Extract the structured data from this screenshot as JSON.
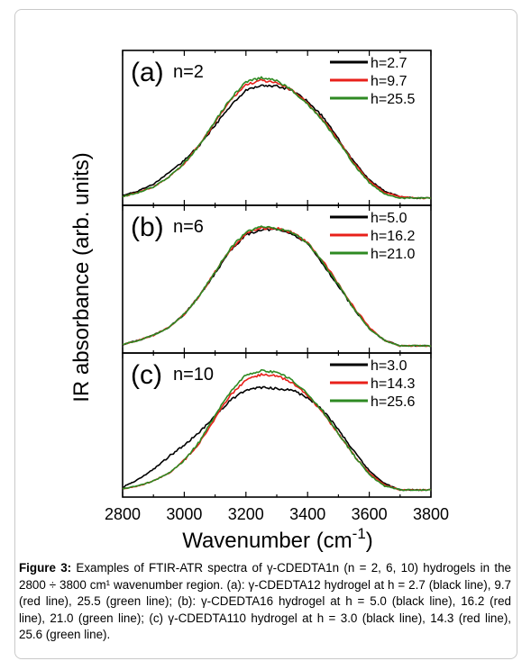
{
  "chart_data": {
    "type": "line",
    "ylabel": "IR absorbance (arb. units)",
    "xlabel_text": "Wavenumber (cm",
    "xlabel_sup": "-1",
    "xlabel_close": ")",
    "xlim": [
      2800,
      3800
    ],
    "x_ticks": [
      "2800",
      "3000",
      "3200",
      "3400",
      "3600",
      "3800"
    ],
    "grid": false,
    "legend_position": "top-right",
    "panels": [
      {
        "panel_label": "(a)",
        "n_label": "n=2",
        "series": [
          {
            "name": "h=2.7",
            "color": "#000000",
            "x": [
              2800,
              2850,
              2900,
              2950,
              3000,
              3050,
              3100,
              3150,
              3200,
              3250,
              3300,
              3350,
              3400,
              3450,
              3500,
              3550,
              3600,
              3650,
              3700,
              3750,
              3800
            ],
            "y": [
              0.02,
              0.05,
              0.1,
              0.18,
              0.27,
              0.38,
              0.52,
              0.66,
              0.77,
              0.8,
              0.8,
              0.77,
              0.69,
              0.58,
              0.42,
              0.26,
              0.13,
              0.05,
              0.01,
              0.0,
              0.0
            ]
          },
          {
            "name": "h=9.7",
            "color": "#e8201a",
            "x": [
              2800,
              2850,
              2900,
              2950,
              3000,
              3050,
              3100,
              3150,
              3200,
              3250,
              3300,
              3350,
              3400,
              3450,
              3500,
              3550,
              3600,
              3650,
              3700,
              3750,
              3800
            ],
            "y": [
              0.01,
              0.04,
              0.08,
              0.15,
              0.25,
              0.38,
              0.54,
              0.7,
              0.81,
              0.84,
              0.82,
              0.77,
              0.68,
              0.56,
              0.41,
              0.25,
              0.12,
              0.04,
              0.01,
              0.0,
              0.0
            ]
          },
          {
            "name": "h=25.5",
            "color": "#2e8a22",
            "x": [
              2800,
              2850,
              2900,
              2950,
              3000,
              3050,
              3100,
              3150,
              3200,
              3250,
              3300,
              3350,
              3400,
              3450,
              3500,
              3550,
              3600,
              3650,
              3700,
              3750,
              3800
            ],
            "y": [
              0.01,
              0.04,
              0.08,
              0.15,
              0.25,
              0.38,
              0.55,
              0.71,
              0.83,
              0.86,
              0.84,
              0.77,
              0.67,
              0.55,
              0.4,
              0.24,
              0.11,
              0.03,
              0.0,
              0.0,
              0.0
            ]
          }
        ]
      },
      {
        "panel_label": "(b)",
        "n_label": "n=6",
        "series": [
          {
            "name": "h=5.0",
            "color": "#000000",
            "x": [
              2800,
              2850,
              2900,
              2950,
              3000,
              3050,
              3100,
              3150,
              3200,
              3250,
              3300,
              3350,
              3400,
              3450,
              3500,
              3550,
              3600,
              3650,
              3700,
              3750,
              3800
            ],
            "y": [
              0.01,
              0.04,
              0.08,
              0.14,
              0.24,
              0.38,
              0.55,
              0.72,
              0.84,
              0.88,
              0.88,
              0.85,
              0.77,
              0.62,
              0.45,
              0.28,
              0.13,
              0.04,
              0.0,
              0.0,
              0.0
            ]
          },
          {
            "name": "h=16.2",
            "color": "#e8201a",
            "x": [
              2800,
              2850,
              2900,
              2950,
              3000,
              3050,
              3100,
              3150,
              3200,
              3250,
              3300,
              3350,
              3400,
              3450,
              3500,
              3550,
              3600,
              3650,
              3700,
              3750,
              3800
            ],
            "y": [
              0.01,
              0.04,
              0.08,
              0.14,
              0.24,
              0.38,
              0.56,
              0.73,
              0.85,
              0.89,
              0.89,
              0.86,
              0.78,
              0.64,
              0.47,
              0.29,
              0.14,
              0.04,
              0.0,
              0.0,
              0.0
            ]
          },
          {
            "name": "h=21.0",
            "color": "#2e8a22",
            "x": [
              2800,
              2850,
              2900,
              2950,
              3000,
              3050,
              3100,
              3150,
              3200,
              3250,
              3300,
              3350,
              3400,
              3450,
              3500,
              3550,
              3600,
              3650,
              3700,
              3750,
              3800
            ],
            "y": [
              0.01,
              0.04,
              0.08,
              0.14,
              0.24,
              0.38,
              0.56,
              0.74,
              0.86,
              0.9,
              0.89,
              0.86,
              0.78,
              0.63,
              0.46,
              0.28,
              0.13,
              0.04,
              0.0,
              0.0,
              0.0
            ]
          }
        ]
      },
      {
        "panel_label": "(c)",
        "n_label": "n=10",
        "series": [
          {
            "name": "h=3.0",
            "color": "#000000",
            "x": [
              2800,
              2850,
              2900,
              2950,
              3000,
              3050,
              3100,
              3150,
              3200,
              3250,
              3300,
              3350,
              3400,
              3450,
              3500,
              3550,
              3600,
              3650,
              3700,
              3750,
              3800
            ],
            "y": [
              0.02,
              0.08,
              0.16,
              0.26,
              0.35,
              0.45,
              0.58,
              0.7,
              0.78,
              0.8,
              0.79,
              0.78,
              0.72,
              0.62,
              0.47,
              0.3,
              0.15,
              0.05,
              0.0,
              0.0,
              0.0
            ]
          },
          {
            "name": "h=14.3",
            "color": "#e8201a",
            "x": [
              2800,
              2850,
              2900,
              2950,
              3000,
              3050,
              3100,
              3150,
              3200,
              3250,
              3300,
              3350,
              3400,
              3450,
              3500,
              3550,
              3600,
              3650,
              3700,
              3750,
              3800
            ],
            "y": [
              0.01,
              0.03,
              0.07,
              0.13,
              0.23,
              0.37,
              0.56,
              0.74,
              0.86,
              0.9,
              0.89,
              0.84,
              0.74,
              0.6,
              0.44,
              0.27,
              0.13,
              0.04,
              0.0,
              0.0,
              0.0
            ]
          },
          {
            "name": "h=25.6",
            "color": "#2e8a22",
            "x": [
              2800,
              2850,
              2900,
              2950,
              3000,
              3050,
              3100,
              3150,
              3200,
              3250,
              3300,
              3350,
              3400,
              3450,
              3500,
              3550,
              3600,
              3650,
              3700,
              3750,
              3800
            ],
            "y": [
              0.01,
              0.03,
              0.07,
              0.13,
              0.23,
              0.38,
              0.58,
              0.77,
              0.9,
              0.93,
              0.92,
              0.86,
              0.75,
              0.61,
              0.44,
              0.27,
              0.12,
              0.03,
              0.0,
              0.0,
              0.0
            ]
          }
        ]
      }
    ]
  },
  "caption": {
    "label": "Figure 3:",
    "text": " Examples of FTIR-ATR spectra of γ-CDEDTA1n (n = 2, 6, 10) hydrogels in the 2800 ÷ 3800 cm¹ wavenumber region. (a): γ-CDEDTA12 hydrogel at h = 2.7 (black line), 9.7 (red line), 25.5 (green line); (b): γ-CDEDTA16 hydrogel at h = 5.0 (black line), 16.2 (red line), 21.0 (green line); (c) γ-CDEDTA110 hydrogel at h = 3.0 (black line), 14.3 (red line), 25.6 (green line)."
  }
}
